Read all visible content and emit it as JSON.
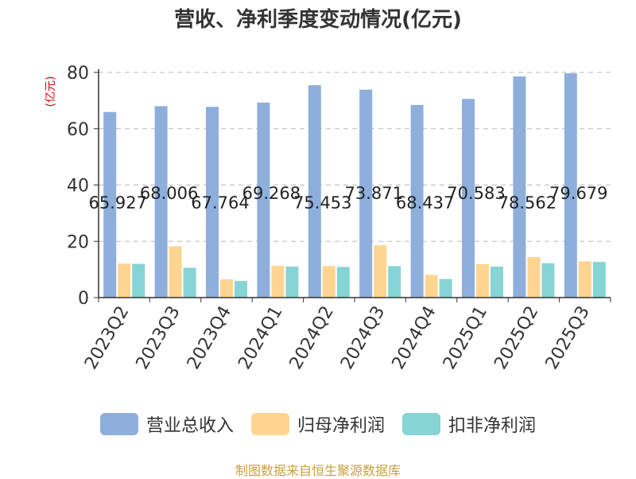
{
  "title": "营收、净利季度变动情况(亿元)",
  "source_text": "制图数据来自恒生聚源数据库",
  "colors": {
    "revenue": "#8eaedc",
    "net_profit": "#ffd591",
    "deducted": "#86d4d4",
    "grid": "#bbbbbb",
    "axis": "#333333",
    "unit": "#e0000a"
  },
  "chart_data": {
    "type": "bar",
    "title": "营收、净利季度变动情况(亿元)",
    "ylabel": "(亿元)",
    "xlabel": "",
    "ylim": [
      0,
      80
    ],
    "yticks": [
      0,
      20,
      40,
      60,
      80
    ],
    "grid": true,
    "legend_position": "bottom",
    "categories": [
      "2023Q2",
      "2023Q3",
      "2023Q4",
      "2024Q1",
      "2024Q2",
      "2024Q3",
      "2024Q4",
      "2025Q1",
      "2025Q2",
      "2025Q3"
    ],
    "series": [
      {
        "name": "营业总收入",
        "values": [
          65.927,
          68.006,
          67.764,
          69.268,
          75.453,
          73.871,
          68.437,
          70.583,
          78.562,
          79.679
        ],
        "labels": [
          "65.927",
          "68.006",
          "67.764",
          "69.268",
          "75.453",
          "73.871",
          "68.437",
          "70.583",
          "78.562",
          "79.679"
        ]
      },
      {
        "name": "归母净利润",
        "values": [
          12.1,
          18.2,
          6.5,
          11.3,
          11.2,
          18.6,
          8.1,
          11.9,
          14.4,
          12.9
        ]
      },
      {
        "name": "扣非净利润",
        "values": [
          12.0,
          10.6,
          5.9,
          11.0,
          10.9,
          11.2,
          6.6,
          11.0,
          12.2,
          12.7
        ]
      }
    ]
  }
}
